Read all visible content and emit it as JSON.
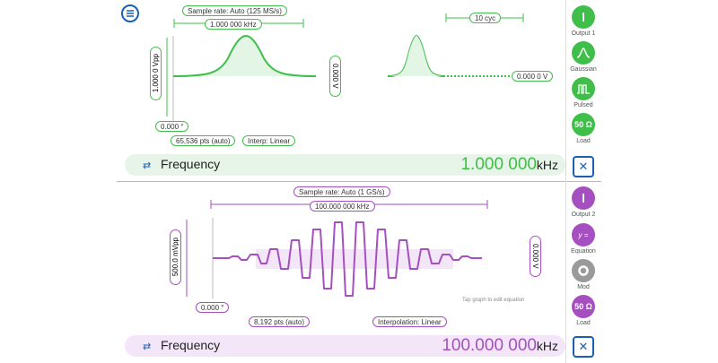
{
  "ch1": {
    "sample_rate": "Sample rate: Auto (125 MS/s)",
    "freq_label": "1.000 000 kHz",
    "cycles": "10 cyc",
    "amplitude": "1.000 0 Vpp",
    "offset": "0.000 V",
    "end_offset": "0.000 0 V",
    "phase": "0.000 °",
    "points": "65,536 pts (auto)",
    "interp": "Interp: Linear",
    "freq_title": "Frequency",
    "freq_value": "1.000 000",
    "freq_unit": "kHz",
    "color": "#3fbf4a",
    "buttons": [
      {
        "name": "output-1-button",
        "icon": "power-icon",
        "label": "Output 1"
      },
      {
        "name": "gaussian-button",
        "icon": "gaussian-icon",
        "label": "Gaussian"
      },
      {
        "name": "pulsed-button",
        "icon": "pulse-icon",
        "label": "Pulsed"
      },
      {
        "name": "load-1-button",
        "icon": "ohm-icon",
        "label": "Load",
        "text": "50 Ω"
      }
    ]
  },
  "ch2": {
    "sample_rate": "Sample rate: Auto (1 GS/s)",
    "freq_label": "100.000 000 kHz",
    "amplitude": "500.0 mVpp",
    "offset": "0.000 V",
    "phase": "0.000 °",
    "points": "8,192 pts (auto)",
    "interp": "Interpolation: Linear",
    "hint": "Tap graph to edit equation",
    "freq_title": "Frequency",
    "freq_value": "100.000 000",
    "freq_unit": "kHz",
    "color": "#a64fc0",
    "buttons": [
      {
        "name": "output-2-button",
        "icon": "power-icon",
        "label": "Output 2"
      },
      {
        "name": "equation-button",
        "icon": "equation-icon",
        "label": "Equation",
        "text": "y ="
      },
      {
        "name": "mod-button",
        "icon": "mod-icon",
        "label": "Mod"
      },
      {
        "name": "load-2-button",
        "icon": "ohm-icon",
        "label": "Load",
        "text": "50 Ω"
      }
    ]
  }
}
